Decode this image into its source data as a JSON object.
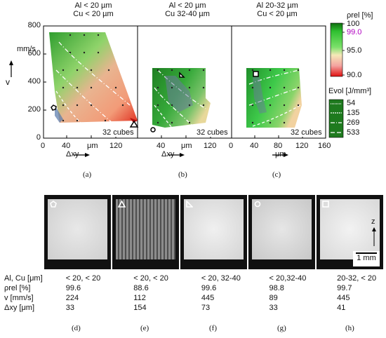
{
  "panels": [
    {
      "id": "a",
      "title_l1": "Al < 20 µm",
      "title_l2": "Cu < 20 µm",
      "cubes": "32 cubes",
      "caption": "(a)"
    },
    {
      "id": "b",
      "title_l1": "Al < 20 µm",
      "title_l2": "Cu 32-40 µm",
      "cubes": "32 cubes",
      "caption": "(b)"
    },
    {
      "id": "c",
      "title_l1": "Al 20-32 µm",
      "title_l2": "Cu < 20 µm",
      "cubes": "32 cubes",
      "caption": "(c)"
    }
  ],
  "axes": {
    "y_ticks": [
      "0",
      "200",
      "400",
      "600",
      "800"
    ],
    "y_unit": "mm/s",
    "y_symbol": "v",
    "x_ticks_a": [
      "0",
      "40",
      "μm",
      "120"
    ],
    "x_ticks_b": [
      "40",
      "μm",
      "120"
    ],
    "x_ticks_c": [
      "0",
      "40",
      "80",
      "120",
      "160"
    ],
    "x_unit": "μm",
    "x_symbol": "Δxy"
  },
  "legend": {
    "rho_label": "ρrel [%]",
    "rho_ticks": [
      "100",
      "99.0",
      "95.0",
      "90.0"
    ],
    "rho_highlight_color": "#b000c0",
    "evol_label": "Evol [J/mm³]",
    "evol_values": [
      "54",
      "135",
      "269",
      "533"
    ]
  },
  "micrographs": [
    {
      "id": "d",
      "marker": "pentagon",
      "caption": "(d)"
    },
    {
      "id": "e",
      "marker": "triangle",
      "caption": "(e)"
    },
    {
      "id": "f",
      "marker": "right-triangle",
      "caption": "(f)"
    },
    {
      "id": "g",
      "marker": "circle",
      "caption": "(g)"
    },
    {
      "id": "h",
      "marker": "square",
      "caption": "(h)",
      "axis_label": "z",
      "scale": "1 mm"
    }
  ],
  "table": {
    "rows": [
      {
        "label": "Al, Cu [μm]",
        "values": [
          "< 20, < 20",
          "< 20, < 20",
          "< 20, 32-40",
          "< 20,32-40",
          "20-32, < 20"
        ]
      },
      {
        "label": "ρrel [%]",
        "values": [
          "99.6",
          "88.6",
          "99.6",
          "98.8",
          "99.7"
        ]
      },
      {
        "label": "v [mm/s]",
        "values": [
          "224",
          "112",
          "445",
          "89",
          "445"
        ]
      },
      {
        "label": "Δxy [μm]",
        "values": [
          "33",
          "154",
          "73",
          "33",
          "41"
        ]
      }
    ]
  },
  "colors": {
    "high": "#1a7a1a",
    "mid": "#49d14a",
    "low": "#d61f1f",
    "mid2": "#f3c7a3",
    "frame": "#000000"
  }
}
